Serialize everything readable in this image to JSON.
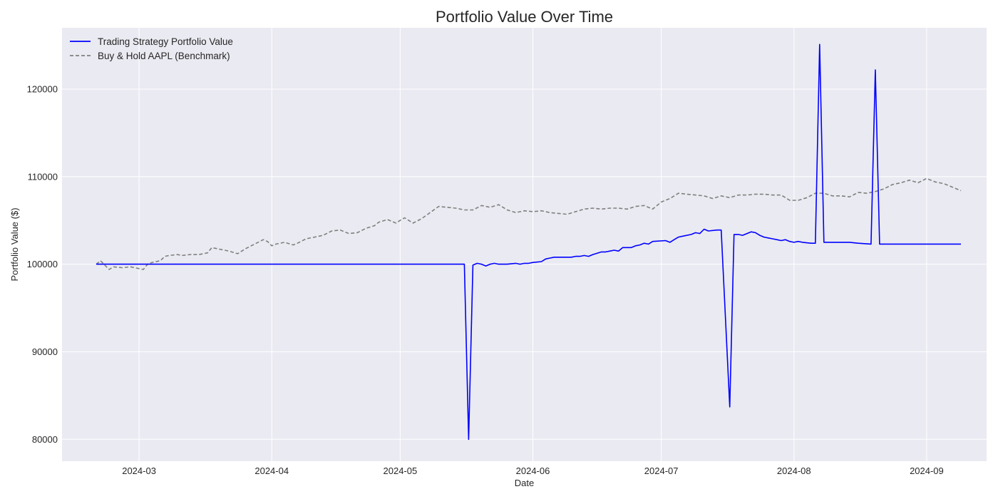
{
  "chart_data": {
    "type": "line",
    "title": "Portfolio Value Over Time",
    "xlabel": "Date",
    "ylabel": "Portfolio Value ($)",
    "xlim": [
      "2024-02-12",
      "2024-09-15"
    ],
    "ylim": [
      77500,
      127000
    ],
    "x_ticks": [
      "2024-03",
      "2024-04",
      "2024-05",
      "2024-06",
      "2024-07",
      "2024-08",
      "2024-09"
    ],
    "y_ticks": [
      80000,
      90000,
      100000,
      110000,
      120000
    ],
    "grid": true,
    "legend_position": "top-left",
    "background_color": "#eaeaf2",
    "series": [
      {
        "name": "Trading Strategy Portfolio Value",
        "color": "#0000ff",
        "style": "solid",
        "x": [
          "2024-02-20",
          "2024-05-16",
          "2024-05-17",
          "2024-05-18",
          "2024-05-19",
          "2024-05-20",
          "2024-05-21",
          "2024-05-22",
          "2024-05-23",
          "2024-05-24",
          "2024-05-26",
          "2024-05-28",
          "2024-05-29",
          "2024-05-30",
          "2024-05-31",
          "2024-06-01",
          "2024-06-03",
          "2024-06-04",
          "2024-06-05",
          "2024-06-06",
          "2024-06-07",
          "2024-06-08",
          "2024-06-10",
          "2024-06-11",
          "2024-06-12",
          "2024-06-13",
          "2024-06-14",
          "2024-06-15",
          "2024-06-17",
          "2024-06-18",
          "2024-06-19",
          "2024-06-20",
          "2024-06-21",
          "2024-06-22",
          "2024-06-24",
          "2024-06-25",
          "2024-06-26",
          "2024-06-27",
          "2024-06-28",
          "2024-06-29",
          "2024-07-02",
          "2024-07-03",
          "2024-07-04",
          "2024-07-05",
          "2024-07-06",
          "2024-07-08",
          "2024-07-09",
          "2024-07-10",
          "2024-07-11",
          "2024-07-12",
          "2024-07-14",
          "2024-07-15",
          "2024-07-17",
          "2024-07-18",
          "2024-07-19",
          "2024-07-20",
          "2024-07-22",
          "2024-07-23",
          "2024-07-24",
          "2024-07-25",
          "2024-07-26",
          "2024-07-27",
          "2024-07-28",
          "2024-07-29",
          "2024-07-30",
          "2024-07-31",
          "2024-08-01",
          "2024-08-02",
          "2024-08-03",
          "2024-08-05",
          "2024-08-06",
          "2024-08-07",
          "2024-08-08",
          "2024-08-10",
          "2024-08-12",
          "2024-08-14",
          "2024-08-16",
          "2024-08-19",
          "2024-08-20",
          "2024-08-21",
          "2024-08-22",
          "2024-08-23",
          "2024-08-24",
          "2024-08-26",
          "2024-08-27",
          "2024-08-29",
          "2024-09-01",
          "2024-09-04",
          "2024-09-06",
          "2024-09-09"
        ],
        "values": [
          100000,
          100000,
          80000,
          99900,
          100100,
          100000,
          99800,
          100000,
          100100,
          100000,
          100000,
          100100,
          100000,
          100100,
          100100,
          100200,
          100300,
          100600,
          100700,
          100800,
          100800,
          100800,
          100800,
          100900,
          100900,
          101000,
          100900,
          101100,
          101400,
          101400,
          101500,
          101600,
          101500,
          101900,
          101900,
          102100,
          102200,
          102400,
          102300,
          102600,
          102700,
          102500,
          102800,
          103100,
          103200,
          103400,
          103600,
          103500,
          104000,
          103800,
          103900,
          103900,
          83700,
          103400,
          103400,
          103300,
          103700,
          103600,
          103300,
          103100,
          103000,
          102900,
          102800,
          102700,
          102800,
          102600,
          102500,
          102600,
          102500,
          102400,
          102400,
          125100,
          102500,
          102500,
          102500,
          102500,
          102400,
          102300,
          122200,
          102300,
          102300,
          102300,
          102300,
          102300,
          102300,
          102300,
          102300,
          102300,
          102300,
          102300
        ]
      },
      {
        "name": "Buy & Hold AAPL (Benchmark)",
        "color": "#808080",
        "style": "dashed",
        "x": [
          "2024-02-20",
          "2024-02-21",
          "2024-02-22",
          "2024-02-23",
          "2024-02-24",
          "2024-02-26",
          "2024-02-28",
          "2024-03-01",
          "2024-03-02",
          "2024-03-03",
          "2024-03-04",
          "2024-03-06",
          "2024-03-07",
          "2024-03-08",
          "2024-03-10",
          "2024-03-11",
          "2024-03-13",
          "2024-03-15",
          "2024-03-17",
          "2024-03-18",
          "2024-03-20",
          "2024-03-22",
          "2024-03-24",
          "2024-03-26",
          "2024-03-28",
          "2024-03-30",
          "2024-03-31",
          "2024-04-01",
          "2024-04-02",
          "2024-04-04",
          "2024-04-06",
          "2024-04-07",
          "2024-04-09",
          "2024-04-11",
          "2024-04-13",
          "2024-04-15",
          "2024-04-17",
          "2024-04-19",
          "2024-04-21",
          "2024-04-23",
          "2024-04-25",
          "2024-04-26",
          "2024-04-28",
          "2024-04-30",
          "2024-05-02",
          "2024-05-04",
          "2024-05-06",
          "2024-05-08",
          "2024-05-10",
          "2024-05-12",
          "2024-05-14",
          "2024-05-16",
          "2024-05-18",
          "2024-05-20",
          "2024-05-22",
          "2024-05-24",
          "2024-05-26",
          "2024-05-28",
          "2024-05-30",
          "2024-06-01",
          "2024-06-03",
          "2024-06-05",
          "2024-06-07",
          "2024-06-09",
          "2024-06-11",
          "2024-06-13",
          "2024-06-15",
          "2024-06-17",
          "2024-06-19",
          "2024-06-21",
          "2024-06-23",
          "2024-06-25",
          "2024-06-27",
          "2024-06-29",
          "2024-07-01",
          "2024-07-03",
          "2024-07-05",
          "2024-07-07",
          "2024-07-09",
          "2024-07-11",
          "2024-07-13",
          "2024-07-15",
          "2024-07-17",
          "2024-07-19",
          "2024-07-21",
          "2024-07-23",
          "2024-07-25",
          "2024-07-27",
          "2024-07-29",
          "2024-07-31",
          "2024-08-02",
          "2024-08-04",
          "2024-08-06",
          "2024-08-08",
          "2024-08-10",
          "2024-08-12",
          "2024-08-14",
          "2024-08-16",
          "2024-08-18",
          "2024-08-20",
          "2024-08-22",
          "2024-08-24",
          "2024-08-26",
          "2024-08-28",
          "2024-08-30",
          "2024-09-01",
          "2024-09-03",
          "2024-09-05",
          "2024-09-07",
          "2024-09-09"
        ],
        "values": [
          100000,
          100400,
          99900,
          99400,
          99700,
          99600,
          99700,
          99500,
          99400,
          100000,
          100200,
          100400,
          100900,
          101000,
          101100,
          101000,
          101100,
          101100,
          101300,
          101900,
          101700,
          101500,
          101200,
          101800,
          102300,
          102800,
          102600,
          102100,
          102300,
          102500,
          102200,
          102400,
          102900,
          103100,
          103300,
          103800,
          103900,
          103500,
          103600,
          104100,
          104400,
          104800,
          105100,
          104700,
          105300,
          104700,
          105200,
          105900,
          106600,
          106500,
          106400,
          106200,
          106200,
          106700,
          106500,
          106800,
          106200,
          105900,
          106100,
          106000,
          106100,
          105900,
          105800,
          105700,
          106000,
          106300,
          106400,
          106300,
          106400,
          106400,
          106300,
          106600,
          106700,
          106300,
          107100,
          107500,
          108100,
          108000,
          107900,
          107800,
          107500,
          107800,
          107600,
          107900,
          107900,
          108000,
          108000,
          107900,
          107900,
          107300,
          107300,
          107600,
          108100,
          108100,
          107800,
          107800,
          107700,
          108200,
          108100,
          108300,
          108600,
          109100,
          109300,
          109600,
          109300,
          109800,
          109400,
          109200,
          108800,
          108400
        ]
      }
    ]
  }
}
